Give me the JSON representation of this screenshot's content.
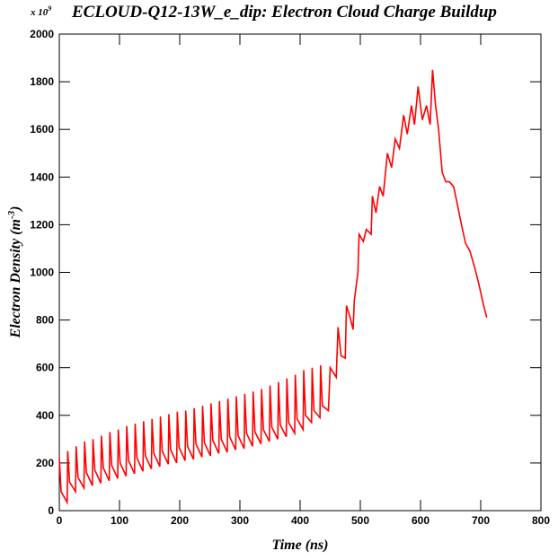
{
  "chart_data": {
    "type": "line",
    "title": "ECLOUD-Q12-13W_e_dip: Electron Cloud Charge Buildup",
    "multiplier": {
      "base": "x 10",
      "exponent": "9"
    },
    "xlabel": "Time (ns)",
    "ylabel": {
      "text": "Electron Density (m",
      "exponent": "-3",
      "end": ")"
    },
    "xlim": [
      0,
      800
    ],
    "ylim": [
      0,
      2000
    ],
    "xticks": [
      0,
      100,
      200,
      300,
      400,
      500,
      600,
      700,
      800
    ],
    "yticks": [
      0,
      200,
      400,
      600,
      800,
      1000,
      1200,
      1400,
      1600,
      1800,
      2000
    ],
    "series": [
      {
        "name": "Electron Density",
        "color": "#ff0000",
        "x": [
          0,
          3,
          13,
          14,
          17,
          27,
          28,
          31,
          41,
          42,
          45,
          55,
          56,
          59,
          69,
          70,
          73,
          83,
          84,
          87,
          97,
          98,
          101,
          111,
          112,
          115,
          125,
          126,
          129,
          139,
          140,
          143,
          153,
          154,
          157,
          167,
          168,
          171,
          181,
          182,
          185,
          195,
          196,
          199,
          209,
          210,
          213,
          223,
          224,
          227,
          237,
          238,
          241,
          251,
          252,
          255,
          265,
          266,
          269,
          279,
          280,
          283,
          293,
          294,
          297,
          307,
          308,
          311,
          321,
          322,
          325,
          335,
          336,
          339,
          349,
          350,
          353,
          363,
          364,
          367,
          377,
          378,
          381,
          391,
          392,
          395,
          405,
          406,
          409,
          419,
          420,
          423,
          433,
          434,
          437,
          447,
          450,
          460,
          463,
          468,
          475,
          477,
          482,
          488,
          490,
          496,
          498,
          505,
          510,
          518,
          520,
          526,
          532,
          538,
          545,
          552,
          558,
          565,
          572,
          578,
          585,
          590,
          596,
          603,
          610,
          616,
          620,
          625,
          630,
          636,
          642,
          648,
          655,
          660,
          668,
          675,
          682,
          690,
          697,
          704,
          710
        ],
        "values": [
          220,
          80,
          35,
          250,
          120,
          80,
          270,
          140,
          95,
          290,
          160,
          105,
          300,
          170,
          115,
          315,
          180,
          125,
          330,
          190,
          135,
          340,
          200,
          145,
          355,
          210,
          155,
          365,
          220,
          165,
          375,
          230,
          175,
          385,
          240,
          185,
          395,
          250,
          195,
          405,
          255,
          200,
          415,
          265,
          210,
          420,
          270,
          215,
          430,
          280,
          225,
          440,
          285,
          230,
          450,
          295,
          240,
          460,
          300,
          245,
          470,
          310,
          255,
          480,
          315,
          260,
          490,
          325,
          270,
          500,
          330,
          280,
          510,
          340,
          290,
          525,
          350,
          300,
          540,
          360,
          310,
          555,
          370,
          325,
          570,
          385,
          340,
          590,
          400,
          370,
          600,
          420,
          390,
          610,
          440,
          420,
          600,
          560,
          770,
          650,
          640,
          860,
          820,
          760,
          880,
          1000,
          1160,
          1130,
          1180,
          1160,
          1320,
          1250,
          1360,
          1320,
          1500,
          1440,
          1560,
          1520,
          1660,
          1580,
          1700,
          1620,
          1780,
          1640,
          1700,
          1620,
          1850,
          1700,
          1600,
          1420,
          1380,
          1380,
          1360,
          1300,
          1200,
          1120,
          1090,
          1020,
          950,
          870,
          810
        ]
      }
    ]
  }
}
